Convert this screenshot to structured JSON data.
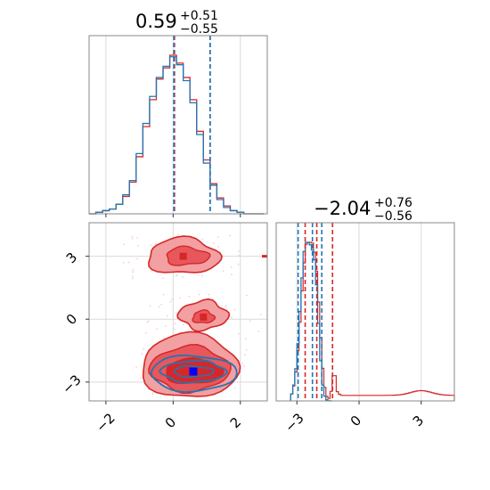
{
  "colors": {
    "red": "#d62728",
    "red_light": "#f2a0a2",
    "red_mid": "#e8575b",
    "blue": "#1f77b4",
    "grid": "#d9d9d9",
    "frame": "#888888"
  },
  "chart_data": [
    {
      "type": "histogram",
      "panel": "param1-marginal",
      "title": {
        "value": "0.59",
        "plus": "+0.51",
        "minus": "−0.55"
      },
      "xlim": [
        -2.5,
        2.8
      ],
      "bins_x": [
        -2.4,
        -2.2,
        -2.0,
        -1.8,
        -1.6,
        -1.4,
        -1.2,
        -1.0,
        -0.8,
        -0.6,
        -0.4,
        -0.2,
        0.0,
        0.2,
        0.4,
        0.6,
        0.8,
        1.0,
        1.2,
        1.4,
        1.6,
        1.8,
        2.0,
        2.2,
        2.4,
        2.6
      ],
      "series": [
        {
          "color": "red",
          "values": [
            0,
            0.01,
            0.02,
            0.03,
            0.06,
            0.11,
            0.2,
            0.36,
            0.55,
            0.72,
            0.85,
            0.92,
            1.0,
            0.95,
            0.86,
            0.72,
            0.52,
            0.34,
            0.19,
            0.1,
            0.05,
            0.02,
            0.01,
            0,
            0,
            0
          ]
        },
        {
          "color": "blue",
          "values": [
            0,
            0.01,
            0.02,
            0.03,
            0.06,
            0.12,
            0.21,
            0.38,
            0.57,
            0.74,
            0.86,
            0.93,
            0.99,
            0.94,
            0.84,
            0.7,
            0.5,
            0.32,
            0.18,
            0.09,
            0.04,
            0.02,
            0.01,
            0,
            0,
            0
          ]
        }
      ],
      "quantiles": {
        "red": [
          0.04,
          1.1
        ],
        "blue": [
          0.02,
          1.1
        ]
      },
      "xticks": [
        -2,
        0,
        2
      ]
    },
    {
      "type": "histogram",
      "panel": "param2-marginal",
      "title": {
        "value": "−2.04",
        "plus": "+0.76",
        "minus": "−0.56"
      },
      "xlim": [
        -4.0,
        4.6
      ],
      "xticks": [
        -3,
        0,
        3
      ],
      "xtick_labels": [
        "−3",
        "0",
        "3"
      ],
      "quantiles": {
        "red": [
          -2.6,
          -2.04,
          -1.28
        ],
        "blue": [
          -2.94,
          -2.25,
          -1.8
        ]
      },
      "blue_peak": {
        "mode": -2.55,
        "level": 1.0
      },
      "red_tail": {
        "start": -1.0,
        "end": 4.5,
        "level": 0.04
      }
    },
    {
      "type": "contour",
      "panel": "joint",
      "xlim": [
        -2.5,
        2.8
      ],
      "ylim": [
        -3.9,
        4.6
      ],
      "xticks": [
        -2,
        0,
        2
      ],
      "xtick_labels": [
        "−2",
        "0",
        "2"
      ],
      "yticks": [
        -3,
        0,
        3
      ],
      "ytick_labels": [
        "−3",
        "0",
        "3"
      ],
      "modes": [
        {
          "x": 0.3,
          "y": 3.0
        },
        {
          "x": 0.9,
          "y": 0.1
        },
        {
          "x": 0.6,
          "y": -2.5
        }
      ],
      "best_fit": {
        "red": [
          0.55,
          -2.5
        ],
        "blue": [
          0.6,
          -2.5
        ]
      }
    }
  ]
}
